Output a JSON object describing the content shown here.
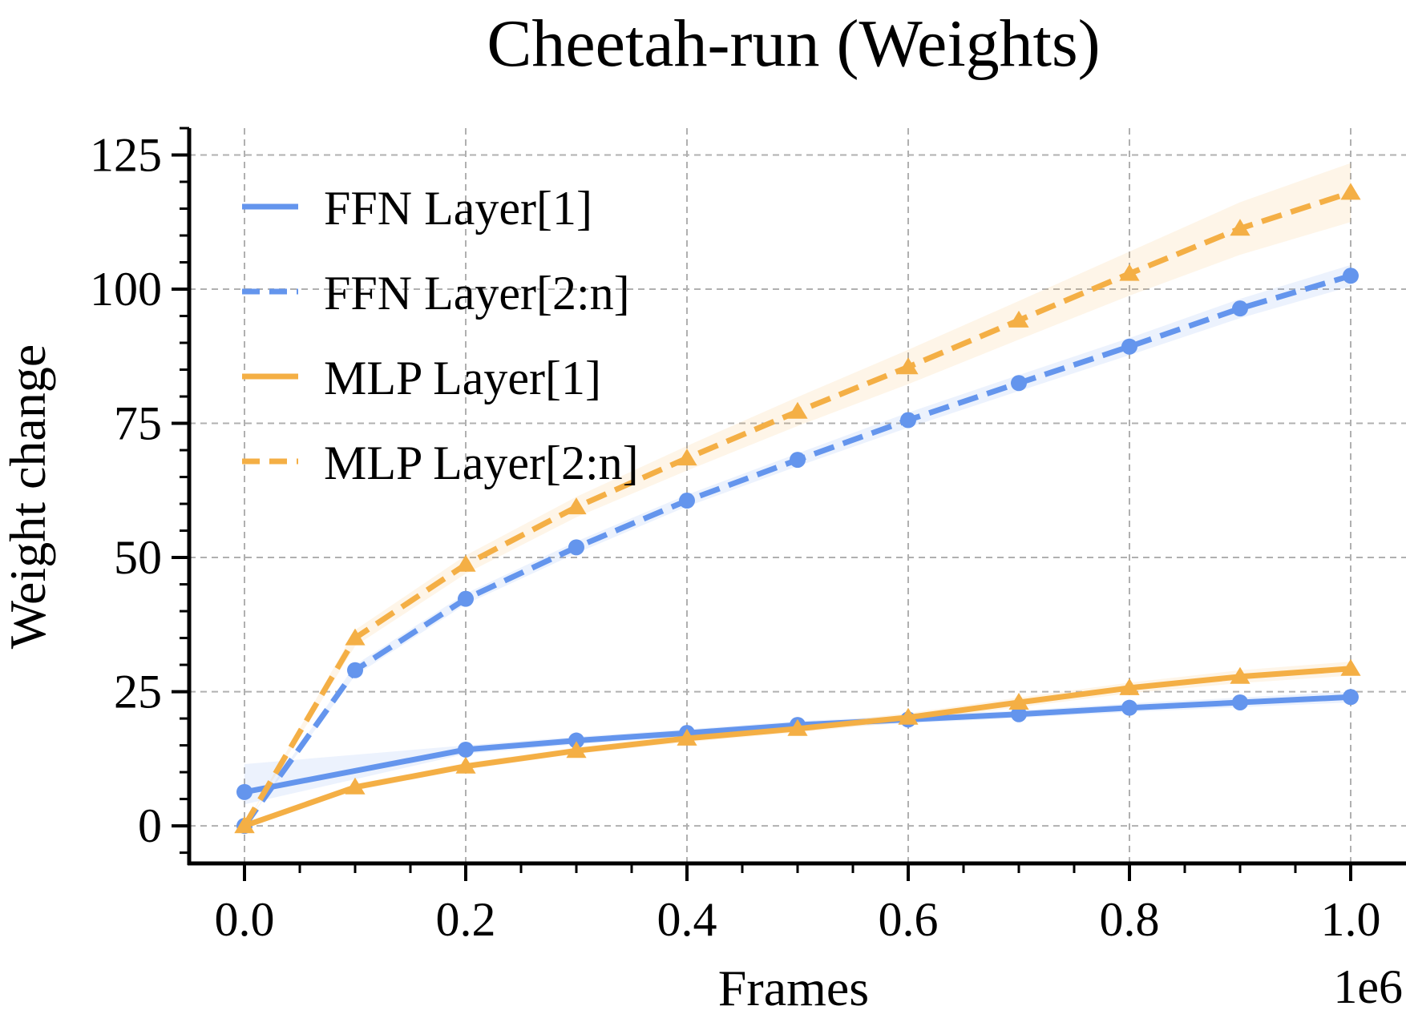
{
  "chart_data": {
    "type": "line",
    "title": "Cheetah-run (Weights)",
    "xlabel": "Frames",
    "ylabel": "Weight change",
    "x_offset_label": "1e6",
    "xlim": [
      -0.05,
      1.05
    ],
    "ylim": [
      -7,
      130
    ],
    "xticks": [
      0.0,
      0.2,
      0.4,
      0.6,
      0.8,
      1.0
    ],
    "xtick_labels": [
      "0.0",
      "0.2",
      "0.4",
      "0.6",
      "0.8",
      "1.0"
    ],
    "yticks": [
      0,
      25,
      50,
      75,
      100,
      125
    ],
    "ytick_labels": [
      "0",
      "25",
      "50",
      "75",
      "100",
      "125"
    ],
    "grid": true,
    "legend_position": "upper-left",
    "x": [
      0.0,
      0.1,
      0.2,
      0.3,
      0.4,
      0.5,
      0.6,
      0.7,
      0.8,
      0.9,
      1.0
    ],
    "series": [
      {
        "name": "FFN Layer[1]",
        "color": "#6495ED",
        "linestyle": "solid",
        "marker": "circle",
        "values": [
          6.3,
          null,
          14.2,
          15.9,
          17.3,
          18.8,
          19.8,
          20.8,
          22.0,
          23.0,
          24.0
        ],
        "band": [
          [
            4.0,
            11.5
          ],
          null,
          [
            13.4,
            15.0
          ],
          [
            15.2,
            16.6
          ],
          [
            16.6,
            18.0
          ],
          [
            18.1,
            19.5
          ],
          [
            19.1,
            20.5
          ],
          [
            20.1,
            21.5
          ],
          [
            21.2,
            22.8
          ],
          [
            22.1,
            23.9
          ],
          [
            23.0,
            25.0
          ]
        ]
      },
      {
        "name": "FFN Layer[2:n]",
        "color": "#6495ED",
        "linestyle": "dashed",
        "marker": "circle",
        "values": [
          0.0,
          29.0,
          42.3,
          51.9,
          60.6,
          68.2,
          75.6,
          82.5,
          89.3,
          96.4,
          102.5
        ],
        "band": [
          [
            0.0,
            0.0
          ],
          [
            28.0,
            30.0
          ],
          [
            41.3,
            43.3
          ],
          [
            50.8,
            53.0
          ],
          [
            59.5,
            61.7
          ],
          [
            67.0,
            69.4
          ],
          [
            74.2,
            77.0
          ],
          [
            81.0,
            84.0
          ],
          [
            87.7,
            90.9
          ],
          [
            94.6,
            98.2
          ],
          [
            100.5,
            104.5
          ]
        ]
      },
      {
        "name": "MLP Layer[1]",
        "color": "#F4AF45",
        "linestyle": "solid",
        "marker": "triangle",
        "values": [
          0.0,
          7.2,
          11.1,
          14.0,
          16.3,
          18.1,
          20.2,
          23.0,
          25.7,
          27.8,
          29.3
        ],
        "band": [
          [
            0.0,
            0.0
          ],
          [
            6.6,
            7.8
          ],
          [
            10.5,
            11.7
          ],
          [
            13.4,
            14.6
          ],
          [
            15.6,
            17.0
          ],
          [
            17.4,
            18.8
          ],
          [
            19.4,
            21.0
          ],
          [
            22.1,
            23.9
          ],
          [
            24.7,
            26.7
          ],
          [
            26.6,
            29.0
          ],
          [
            28.0,
            30.6
          ]
        ]
      },
      {
        "name": "MLP Layer[2:n]",
        "color": "#F4AF45",
        "linestyle": "dashed",
        "marker": "triangle",
        "values": [
          0.0,
          35.0,
          48.7,
          59.4,
          68.5,
          77.2,
          85.5,
          94.2,
          102.9,
          111.3,
          118.0
        ],
        "band": [
          [
            0.0,
            0.0
          ],
          [
            33.5,
            36.5
          ],
          [
            47.0,
            50.4
          ],
          [
            57.5,
            61.3
          ],
          [
            66.2,
            70.8
          ],
          [
            74.5,
            79.9
          ],
          [
            82.3,
            88.7
          ],
          [
            90.6,
            97.8
          ],
          [
            98.8,
            107.0
          ],
          [
            106.4,
            116.2
          ],
          [
            112.5,
            123.5
          ]
        ]
      }
    ]
  }
}
